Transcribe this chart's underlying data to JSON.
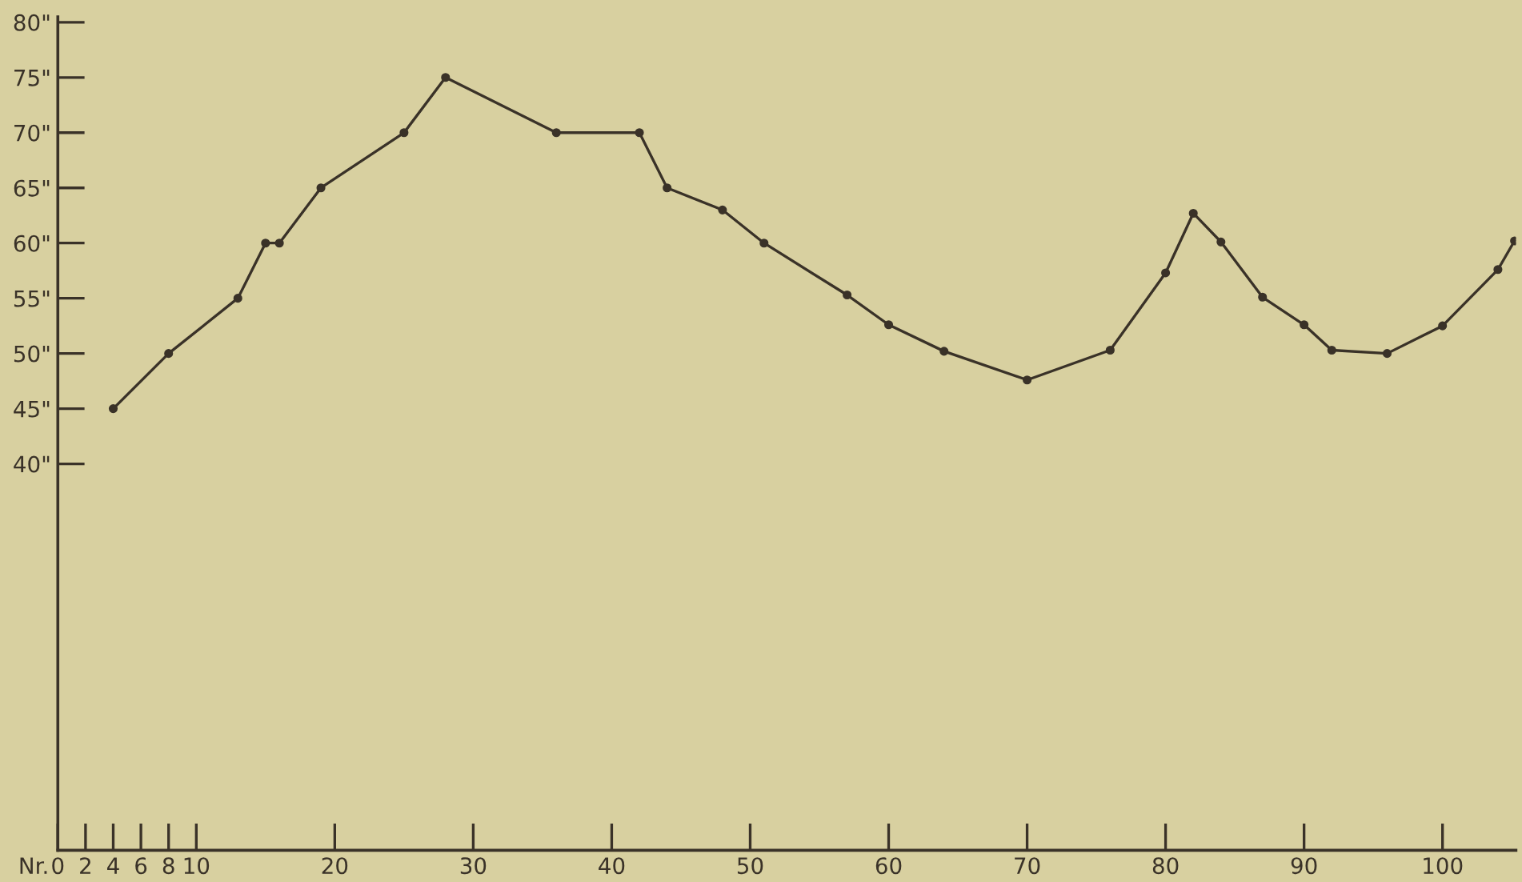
{
  "chart_data": {
    "type": "line",
    "xlabel": "Nr.",
    "x": [
      4,
      8,
      13,
      15,
      16,
      19,
      25,
      28,
      36,
      42,
      44,
      48,
      51,
      57,
      60,
      64,
      70,
      76,
      80,
      82,
      84,
      87,
      90,
      92,
      96,
      100,
      104,
      105.2
    ],
    "series": [
      {
        "color": "#3a3228",
        "values": [
          45,
          50,
          55,
          60,
          60,
          65,
          70,
          75,
          70,
          70,
          65,
          63,
          60,
          55.3,
          52.6,
          50.2,
          47.6,
          50.3,
          57.3,
          62.7,
          60.1,
          55.1,
          52.6,
          50.3,
          50,
          52.5,
          57.6,
          60.2
        ]
      }
    ],
    "marker": "circle",
    "line_style": "solid",
    "grid": false,
    "legend": false,
    "xlim": [
      0,
      105.3
    ],
    "ylim": [
      5,
      80.5
    ],
    "xticks": [
      0,
      2,
      4,
      6,
      8,
      10,
      20,
      30,
      40,
      50,
      60,
      70,
      80,
      90,
      100
    ],
    "yticks": [
      {
        "value": 40,
        "label": "40\""
      },
      {
        "value": 45,
        "label": "45\""
      },
      {
        "value": 50,
        "label": "50\""
      },
      {
        "value": 55,
        "label": "55\""
      },
      {
        "value": 60,
        "label": "60\""
      },
      {
        "value": 65,
        "label": "65\""
      },
      {
        "value": 70,
        "label": "70\""
      },
      {
        "value": 75,
        "label": "75\""
      },
      {
        "value": 80,
        "label": "80\""
      }
    ]
  }
}
